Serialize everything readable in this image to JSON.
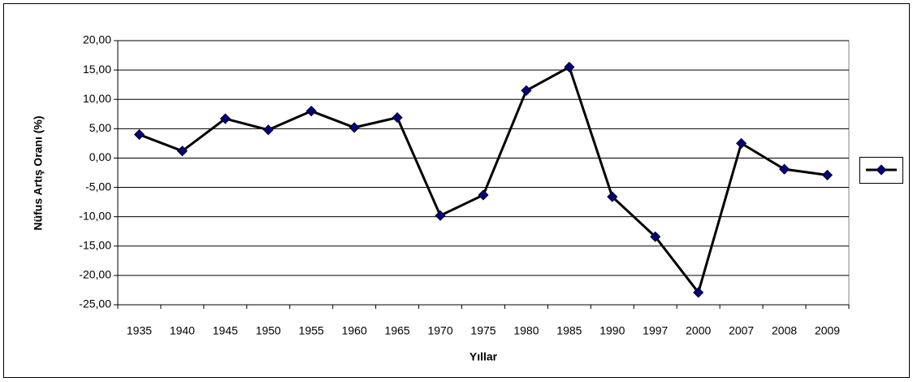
{
  "chart_data": {
    "type": "line",
    "x_label": "Yıllar",
    "y_label": "Nüfus Artış Oranı (%)",
    "categories": [
      "1935",
      "1940",
      "1945",
      "1950",
      "1955",
      "1960",
      "1965",
      "1970",
      "1975",
      "1980",
      "1985",
      "1990",
      "1997",
      "2000",
      "2007",
      "2008",
      "2009"
    ],
    "series": [
      {
        "color": "#000080",
        "values": [
          4.0,
          1.2,
          6.7,
          4.8,
          8.0,
          5.2,
          6.9,
          -9.8,
          -6.3,
          11.5,
          15.5,
          -6.6,
          -13.4,
          -22.9,
          2.5,
          -1.9,
          -2.9
        ]
      }
    ],
    "ylim": [
      -25,
      20
    ],
    "yticks": [
      {
        "value": -25,
        "label": "-25,00"
      },
      {
        "value": -20,
        "label": "-20,00"
      },
      {
        "value": -15,
        "label": "-15,00"
      },
      {
        "value": -10,
        "label": "-10,00"
      },
      {
        "value": -5,
        "label": "-5,00"
      },
      {
        "value": 0,
        "label": "0,00"
      },
      {
        "value": 5,
        "label": "5,00"
      },
      {
        "value": 10,
        "label": "10,00"
      },
      {
        "value": 15,
        "label": "15,00"
      },
      {
        "value": 20,
        "label": "20,00"
      }
    ],
    "grid": true,
    "legend": "right"
  }
}
